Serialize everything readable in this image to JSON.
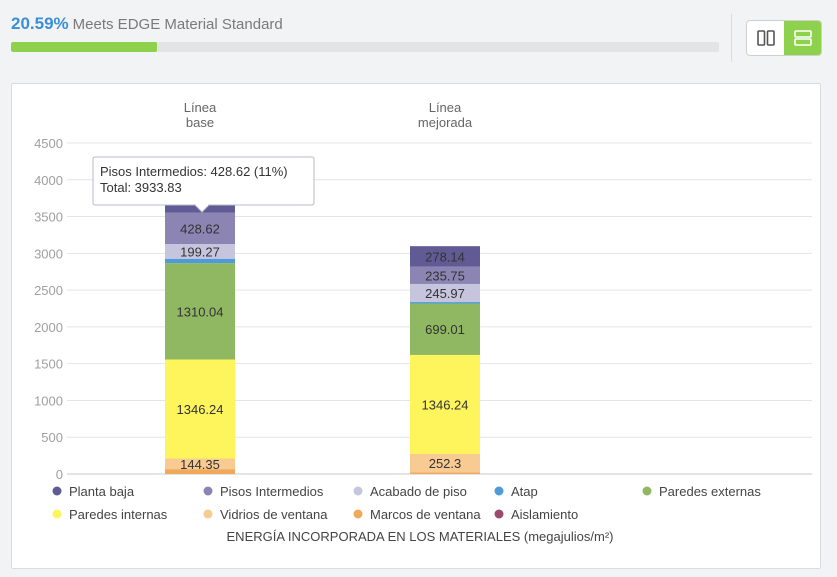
{
  "progress": {
    "percent_text": "20.59%",
    "label": "Meets EDGE Material Standard",
    "value": 0.2059
  },
  "view_toggle": {
    "options": [
      "columns-view-icon",
      "rows-view-icon"
    ],
    "selected": "rows-view-icon",
    "accent": "#8ed14c"
  },
  "chart_data": {
    "type": "bar",
    "stacked": true,
    "categories": [
      [
        "Línea",
        "base"
      ],
      [
        "Línea",
        "mejorada"
      ]
    ],
    "ylim": [
      0,
      4500
    ],
    "yticks": [
      0,
      500,
      1000,
      1500,
      2000,
      2500,
      3000,
      3500,
      4000,
      4500
    ],
    "xlabel": "ENERGÍA INCORPORADA EN LOS MATERIALES (megajulios/m²)",
    "grid": true,
    "legend_position": "bottom",
    "series": [
      {
        "name": "Aislamiento",
        "color": "#9b4a6e",
        "values": [
          0,
          0
        ]
      },
      {
        "name": "Marcos de ventana",
        "color": "#f0a95a",
        "values": [
          66,
          20
        ]
      },
      {
        "name": "Vidrios de ventana",
        "color": "#f8cb93",
        "values": [
          144.35,
          252.3
        ]
      },
      {
        "name": "Paredes internas",
        "color": "#fef45c",
        "values": [
          1346.24,
          1346.24
        ]
      },
      {
        "name": "Paredes externas",
        "color": "#90b862",
        "values": [
          1310.04,
          699.01
        ]
      },
      {
        "name": "Atap",
        "color": "#4e9bd8",
        "values": [
          60,
          20
        ]
      },
      {
        "name": "Acabado de piso",
        "color": "#c7c5de",
        "values": [
          199.27,
          245.97
        ]
      },
      {
        "name": "Pisos Intermedios",
        "color": "#8c84b3",
        "values": [
          428.62,
          235.75
        ]
      },
      {
        "name": "Planta baja",
        "color": "#625a95",
        "values": [
          379.31,
          278.14
        ]
      }
    ],
    "data_labels": [
      [
        "",
        "",
        "144.35",
        "1346.24",
        "1310.04",
        "",
        "199.27",
        "428.62",
        ""
      ],
      [
        "",
        "",
        "252.3",
        "1346.24",
        "699.01",
        "",
        "245.97",
        "235.75",
        "278.14"
      ]
    ],
    "legend_order": [
      "Planta baja",
      "Pisos Intermedios",
      "Acabado de piso",
      "Atap",
      "Paredes externas",
      "Paredes internas",
      "Vidrios de ventana",
      "Marcos de ventana",
      "Aislamiento"
    ],
    "tooltip": {
      "line1": "Pisos Intermedios: 428.62 (11%)",
      "line2": "Total: 3933.83"
    }
  }
}
